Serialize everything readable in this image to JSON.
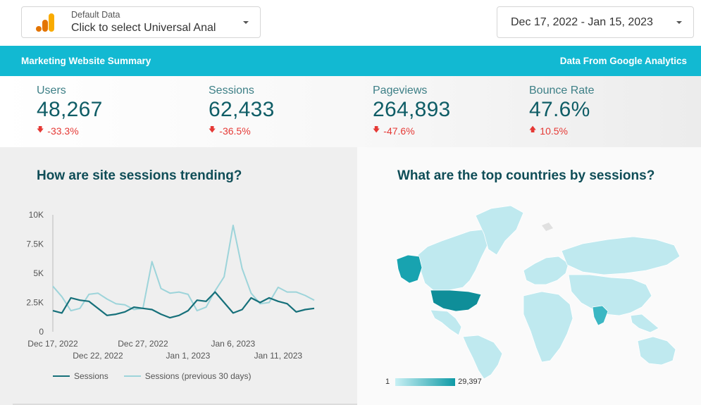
{
  "data_source": {
    "label": "Default Data",
    "value": "Click to select Universal Anal"
  },
  "date_range": {
    "value": "Dec 17, 2022 - Jan 15, 2023"
  },
  "header": {
    "title": "Marketing Website Summary",
    "source": "Data From Google Analytics"
  },
  "kpis": [
    {
      "label": "Users",
      "value": "48,267",
      "delta": "-33.3%",
      "direction": "down"
    },
    {
      "label": "Sessions",
      "value": "62,433",
      "delta": "-36.5%",
      "direction": "down"
    },
    {
      "label": "Pageviews",
      "value": "264,893",
      "delta": "-47.6%",
      "direction": "down"
    },
    {
      "label": "Bounce Rate",
      "value": "47.6%",
      "delta": "10.5%",
      "direction": "up"
    }
  ],
  "panels": {
    "trend_title": "How are site sessions trending?",
    "map_title": "What are the top countries by sessions?"
  },
  "colors": {
    "accent": "#12b9d2",
    "sessions": "#16707a",
    "previous": "#9dd4da",
    "negative": "#e53935"
  },
  "chart_data": {
    "type": "line",
    "x": [
      "Dec 17, 2022",
      "Dec 18",
      "Dec 19",
      "Dec 20",
      "Dec 21",
      "Dec 22, 2022",
      "Dec 23",
      "Dec 24",
      "Dec 25",
      "Dec 26",
      "Dec 27, 2022",
      "Dec 28",
      "Dec 29",
      "Dec 30",
      "Dec 31",
      "Jan 1, 2023",
      "Jan 2",
      "Jan 3",
      "Jan 4",
      "Jan 5",
      "Jan 6, 2023",
      "Jan 7",
      "Jan 8",
      "Jan 9",
      "Jan 10",
      "Jan 11, 2023",
      "Jan 12",
      "Jan 13",
      "Jan 14",
      "Jan 15"
    ],
    "x_ticks_top": [
      "Dec 17, 2022",
      "Dec 27, 2022",
      "Jan 6, 2023"
    ],
    "x_ticks_bottom": [
      "Dec 22, 2022",
      "Jan 1, 2023",
      "Jan 11, 2023"
    ],
    "y_ticks": [
      "10K",
      "7.5K",
      "5K",
      "2.5K",
      "0"
    ],
    "ylim": [
      0,
      10000
    ],
    "series": [
      {
        "name": "Sessions",
        "values": [
          1800,
          1600,
          2900,
          2700,
          2600,
          2000,
          1400,
          1500,
          1700,
          2100,
          2000,
          1900,
          1500,
          1200,
          1400,
          1800,
          2700,
          2600,
          3400,
          2500,
          1600,
          1900,
          2900,
          2500,
          2900,
          2600,
          2400,
          1700,
          1900,
          2000
        ]
      },
      {
        "name": "Sessions (previous 30 days)",
        "values": [
          3900,
          3000,
          1800,
          2000,
          3200,
          3300,
          2800,
          2400,
          2300,
          1900,
          2000,
          6000,
          3700,
          3300,
          3400,
          3200,
          1800,
          2100,
          3500,
          4700,
          9100,
          5400,
          3300,
          2400,
          2500,
          3800,
          3400,
          3400,
          3100,
          2700
        ]
      }
    ],
    "legend": [
      "Sessions",
      "Sessions (previous 30 days)"
    ],
    "grid": false
  },
  "map": {
    "scale_min": "1",
    "scale_max": "29,397"
  }
}
